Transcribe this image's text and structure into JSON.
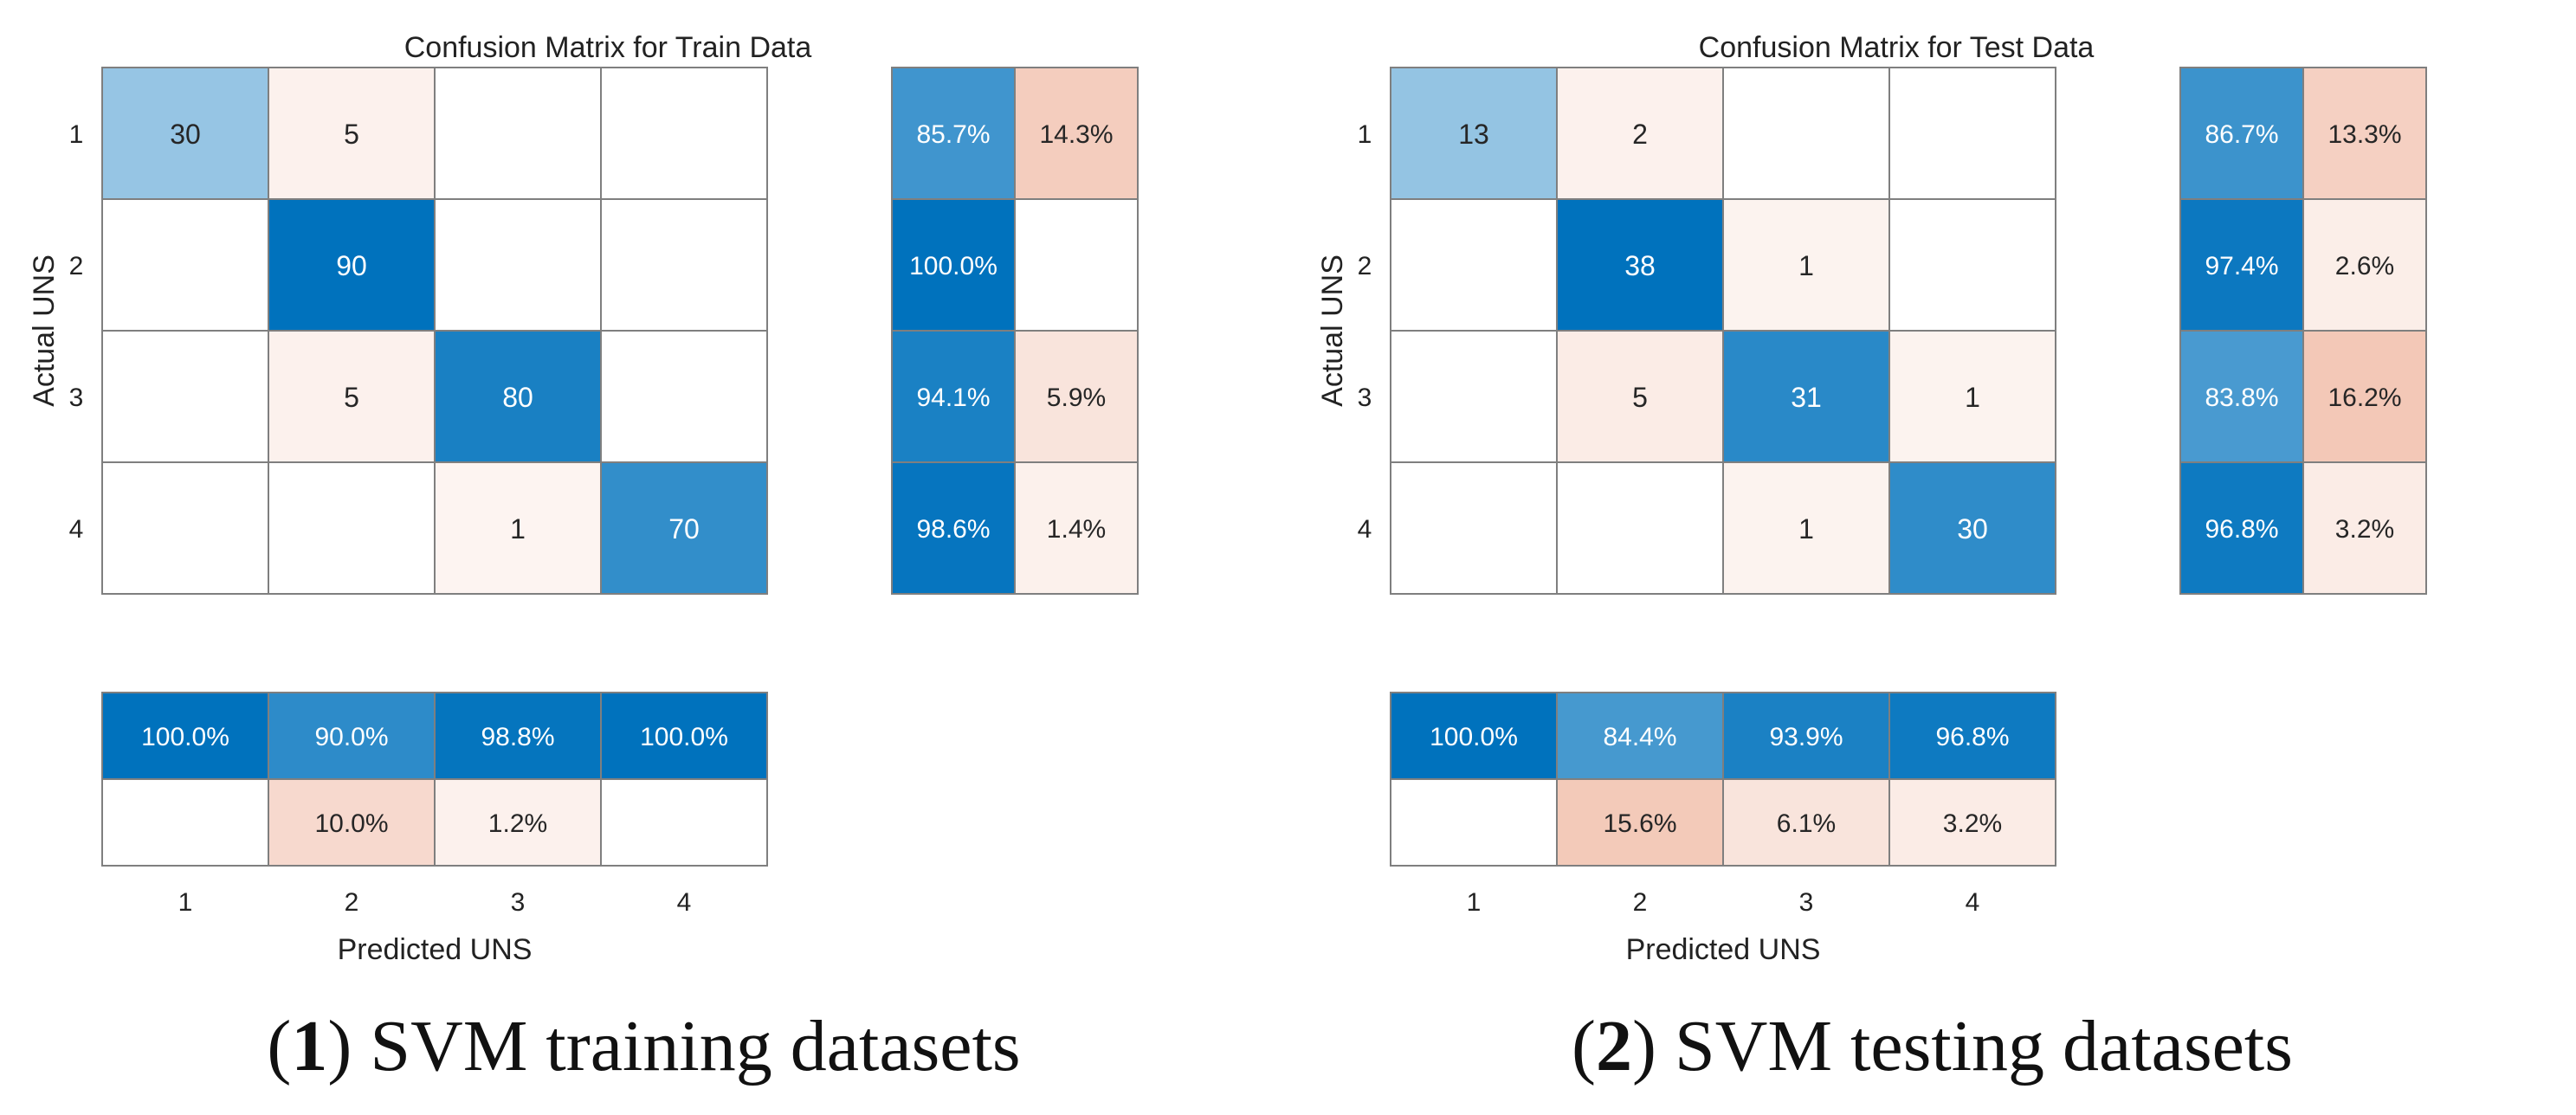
{
  "colors": {
    "high": "#0072bd",
    "low_blue": "#ffffff",
    "error_high": "#d9531e",
    "error_low": "#ffffff",
    "grid": "#7f7f7f",
    "text_dark": "#262626",
    "text_light": "#ffffff"
  },
  "chart_data": [
    {
      "type": "heatmap",
      "title": "Confusion Matrix for Train Data",
      "xlabel": "Predicted UNS",
      "ylabel": "Actual UNS",
      "classes": [
        "1",
        "2",
        "3",
        "4"
      ],
      "matrix": [
        [
          30,
          5,
          0,
          0
        ],
        [
          0,
          90,
          0,
          0
        ],
        [
          0,
          5,
          80,
          0
        ],
        [
          0,
          0,
          1,
          70
        ]
      ],
      "matrix_text": [
        [
          "30",
          "5",
          "",
          ""
        ],
        [
          "",
          "90",
          "",
          ""
        ],
        [
          "",
          "5",
          "80",
          ""
        ],
        [
          "",
          "",
          "1",
          "70"
        ]
      ],
      "row_summary": {
        "correct": [
          85.7,
          100.0,
          94.1,
          98.6
        ],
        "incorrect": [
          14.3,
          0,
          5.9,
          1.4
        ],
        "correct_text": [
          "85.7%",
          "100.0%",
          "94.1%",
          "98.6%"
        ],
        "incorrect_text": [
          "14.3%",
          "",
          "5.9%",
          "1.4%"
        ]
      },
      "column_summary": {
        "correct": [
          100.0,
          90.0,
          98.8,
          100.0
        ],
        "incorrect": [
          0,
          10.0,
          1.2,
          0
        ],
        "correct_text": [
          "100.0%",
          "90.0%",
          "98.8%",
          "100.0%"
        ],
        "incorrect_text": [
          "",
          "10.0%",
          "1.2%",
          ""
        ]
      },
      "caption_num": "1",
      "caption_text": "SVM training datasets"
    },
    {
      "type": "heatmap",
      "title": "Confusion Matrix for Test Data",
      "xlabel": "Predicted UNS",
      "ylabel": "Actual UNS",
      "classes": [
        "1",
        "2",
        "3",
        "4"
      ],
      "matrix": [
        [
          13,
          2,
          0,
          0
        ],
        [
          0,
          38,
          1,
          0
        ],
        [
          0,
          5,
          31,
          1
        ],
        [
          0,
          0,
          1,
          30
        ]
      ],
      "matrix_text": [
        [
          "13",
          "2",
          "",
          ""
        ],
        [
          "",
          "38",
          "1",
          ""
        ],
        [
          "",
          "5",
          "31",
          "1"
        ],
        [
          "",
          "",
          "1",
          "30"
        ]
      ],
      "row_summary": {
        "correct": [
          86.7,
          97.4,
          83.8,
          96.8
        ],
        "incorrect": [
          13.3,
          2.6,
          16.2,
          3.2
        ],
        "correct_text": [
          "86.7%",
          "97.4%",
          "83.8%",
          "96.8%"
        ],
        "incorrect_text": [
          "13.3%",
          "2.6%",
          "16.2%",
          "3.2%"
        ]
      },
      "column_summary": {
        "correct": [
          100.0,
          84.4,
          93.9,
          96.8
        ],
        "incorrect": [
          0,
          15.6,
          6.1,
          3.2
        ],
        "correct_text": [
          "100.0%",
          "84.4%",
          "93.9%",
          "96.8%"
        ],
        "incorrect_text": [
          "",
          "15.6%",
          "6.1%",
          "3.2%"
        ]
      },
      "caption_num": "2",
      "caption_text": "SVM testing datasets"
    }
  ]
}
